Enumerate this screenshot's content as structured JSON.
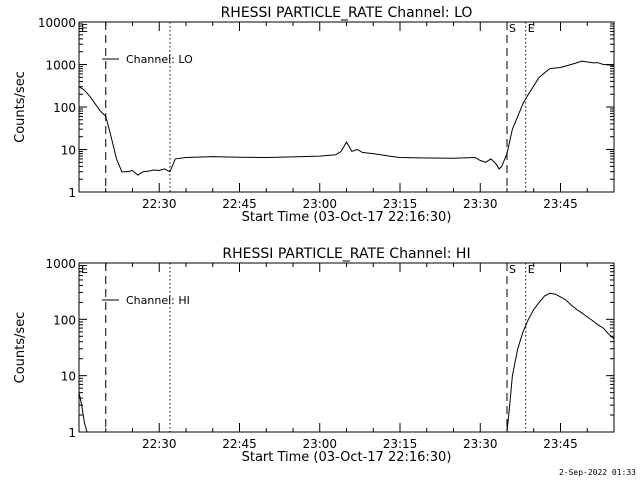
{
  "chart_data": [
    {
      "type": "line",
      "title": "RHESSI PARTICLE_RATE Channel: LO",
      "xlabel": "Start Time (03-Oct-17 22:16:30)",
      "ylabel": "Counts/sec",
      "y_scale": "log",
      "ylim": [
        1,
        10000
      ],
      "xlim_minutes": [
        0,
        100
      ],
      "x_tick_labels": [
        "22:30",
        "22:45",
        "23:00",
        "23:15",
        "23:30",
        "23:45"
      ],
      "x_tick_minutes": [
        15,
        30,
        45,
        60,
        75,
        90
      ],
      "y_tick_labels": [
        "1",
        "10",
        "100",
        "1000",
        "10000"
      ],
      "y_tick_values": [
        1,
        10,
        100,
        1000,
        10000
      ],
      "legend": "Channel: LO",
      "markers": [
        {
          "label": "E",
          "minute": 0,
          "style": "dashed"
        },
        {
          "label": "",
          "minute": 5,
          "style": "dashed"
        },
        {
          "label": "",
          "minute": 17,
          "style": "dotted"
        },
        {
          "label": "S",
          "minute": 80,
          "style": "dashed"
        },
        {
          "label": "E",
          "minute": 83.5,
          "style": "dotted"
        },
        {
          "label": "",
          "minute": 100,
          "style": "dashdot"
        }
      ],
      "series": [
        {
          "x": [
            0,
            1,
            2,
            3,
            4,
            5,
            6,
            7,
            8,
            9,
            10,
            11,
            12,
            13,
            14,
            15,
            16,
            17,
            18,
            20,
            25,
            30,
            35,
            40,
            45,
            48,
            49,
            50,
            51,
            52,
            53,
            55,
            58,
            60,
            65,
            70,
            74,
            75,
            76,
            77,
            78,
            78.5,
            79,
            80,
            81,
            82,
            83,
            84,
            86,
            88,
            90,
            92,
            94,
            96,
            97,
            98,
            100
          ],
          "y": [
            300,
            250,
            180,
            120,
            80,
            60,
            20,
            6,
            3,
            3,
            3.2,
            2.5,
            3,
            3.1,
            3.3,
            3.2,
            3.5,
            3,
            6,
            6.5,
            6.8,
            6.6,
            6.5,
            6.7,
            7,
            7.5,
            9,
            15,
            9,
            10,
            8.5,
            8,
            7,
            6.5,
            6.3,
            6.2,
            6.5,
            5.5,
            5,
            6,
            4.5,
            3.5,
            4,
            8,
            30,
            60,
            120,
            200,
            500,
            800,
            850,
            1000,
            1200,
            1100,
            1100,
            1000,
            950
          ]
        }
      ]
    },
    {
      "type": "line",
      "title": "RHESSI PARTICLE_RATE Channel: HI",
      "xlabel": "Start Time (03-Oct-17 22:16:30)",
      "ylabel": "Counts/sec",
      "y_scale": "log",
      "ylim": [
        1,
        1000
      ],
      "xlim_minutes": [
        0,
        100
      ],
      "x_tick_labels": [
        "22:30",
        "22:45",
        "23:00",
        "23:15",
        "23:30",
        "23:45"
      ],
      "x_tick_minutes": [
        15,
        30,
        45,
        60,
        75,
        90
      ],
      "y_tick_labels": [
        "1",
        "10",
        "100",
        "1000"
      ],
      "y_tick_values": [
        1,
        10,
        100,
        1000
      ],
      "legend": "Channel: HI",
      "markers": [
        {
          "label": "E",
          "minute": 0,
          "style": "dashed"
        },
        {
          "label": "",
          "minute": 5,
          "style": "dashed"
        },
        {
          "label": "",
          "minute": 17,
          "style": "dotted"
        },
        {
          "label": "S",
          "minute": 80,
          "style": "dashed"
        },
        {
          "label": "E",
          "minute": 83.5,
          "style": "dotted"
        },
        {
          "label": "",
          "minute": 100,
          "style": "dashdot"
        }
      ],
      "series": [
        {
          "x": [
            0,
            0.5,
            1,
            1.5,
            80,
            80.5,
            81,
            82,
            83,
            84,
            85,
            86,
            87,
            88,
            89,
            90,
            91,
            92,
            93,
            94,
            95,
            96,
            97,
            98,
            99,
            100
          ],
          "y": [
            5,
            3,
            1.5,
            1,
            1,
            3,
            10,
            30,
            60,
            100,
            150,
            200,
            260,
            290,
            280,
            250,
            220,
            180,
            150,
            130,
            110,
            95,
            80,
            70,
            55,
            45
          ]
        }
      ]
    }
  ],
  "footer": "2-Sep-2022 01:33"
}
